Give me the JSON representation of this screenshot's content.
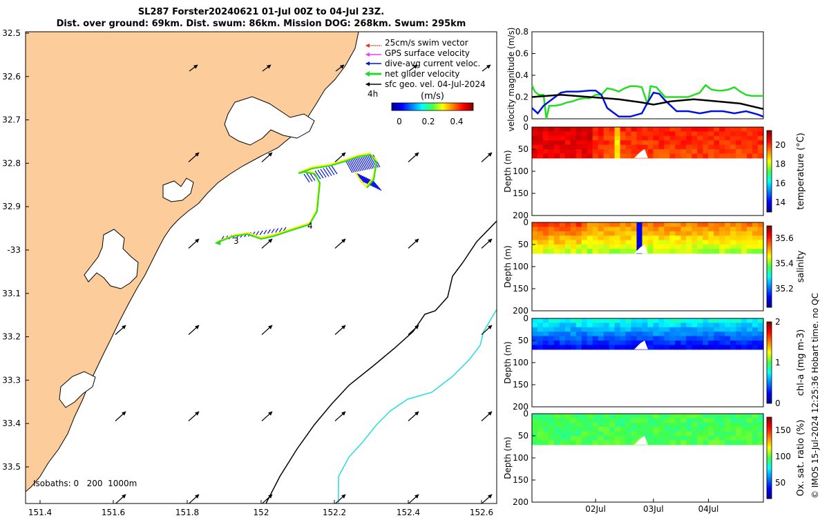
{
  "title": {
    "line1": "SL287 Forster20240621 01-Jul 00Z to 04-Jul 23Z.",
    "line2": "Dist. over ground: 69km. Dist. swum: 86km. Mission DOG: 268km. Swum: 295km"
  },
  "colors": {
    "land": "#fccc9a",
    "swim_vector": "#e8321e",
    "gps_velocity": "#ff33ff",
    "dive_avg": "#0010e0",
    "net_glider": "#22dd22",
    "sfc_geo": "#000000",
    "isobath_200": "#000000",
    "isobath_1000": "#22dddd"
  },
  "map": {
    "lon_ticks": [
      "151.4",
      "151.6",
      "151.8",
      "152",
      "152.2",
      "152.4",
      "152.6"
    ],
    "lat_ticks": [
      "32.5",
      "32.6",
      "32.7",
      "32.8",
      "32.9",
      "-33",
      "33.1",
      "33.2",
      "33.3",
      "33.4",
      "33.5"
    ],
    "legend": [
      {
        "label": "25cm/s swim vector",
        "key": "swim_vector"
      },
      {
        "label": "GPS surface velocity",
        "key": "gps_velocity"
      },
      {
        "label": "dive-avg current veloc.",
        "key": "dive_avg"
      },
      {
        "label": "net glider velocity",
        "key": "net_glider"
      },
      {
        "label": "sfc geo. vel. 04-Jul-2024",
        "key": "sfc_geo"
      }
    ],
    "legend_extra": "4h",
    "colorbar": {
      "label": "(m/s)",
      "ticks": [
        "0",
        "0.2",
        "0.4"
      ]
    },
    "isobath_label": "Isobaths: 0   200  1000m",
    "track_day_labels": [
      "3",
      "4"
    ]
  },
  "chart_data": [
    {
      "type": "line",
      "x_ticks": [
        "02Jul",
        "03Jul",
        "04Jul"
      ],
      "ylabel": "velocity magnitude (m/s)",
      "y_ticks": [
        "0",
        "0.2",
        "0.4",
        "0.6",
        "0.8"
      ],
      "ylim": [
        0,
        0.8
      ],
      "xlim": [
        0,
        4
      ],
      "series": [
        {
          "name": "net glider velocity",
          "color_key": "net_glider",
          "x": [
            0,
            0.05,
            0.12,
            0.2,
            0.25,
            0.3,
            0.4,
            0.5,
            0.6,
            0.7,
            0.8,
            0.9,
            1.0,
            1.1,
            1.2,
            1.3,
            1.4,
            1.5,
            1.6,
            1.7,
            1.8,
            1.9,
            2.0,
            2.05,
            2.15,
            2.3,
            2.5,
            2.7,
            2.9,
            3.0,
            3.1,
            3.2,
            3.3,
            3.4,
            3.5,
            3.6,
            3.7,
            3.8,
            4.0
          ],
          "values": [
            0.31,
            0.25,
            0.22,
            0.22,
            0.0,
            0.12,
            0.12,
            0.13,
            0.15,
            0.16,
            0.18,
            0.19,
            0.19,
            0.22,
            0.22,
            0.28,
            0.27,
            0.25,
            0.28,
            0.3,
            0.3,
            0.29,
            0.13,
            0.3,
            0.29,
            0.2,
            0.2,
            0.2,
            0.24,
            0.31,
            0.27,
            0.26,
            0.26,
            0.27,
            0.29,
            0.25,
            0.22,
            0.21,
            0.21
          ]
        },
        {
          "name": "dive-avg current veloc.",
          "color_key": "dive_avg",
          "x": [
            0,
            0.1,
            0.2,
            0.4,
            0.5,
            0.6,
            0.8,
            1.0,
            1.1,
            1.2,
            1.3,
            1.4,
            1.5,
            1.7,
            1.9,
            2.0,
            2.1,
            2.2,
            2.3,
            2.5,
            2.7,
            2.9,
            3.0,
            3.1,
            3.3,
            3.5,
            3.7,
            3.9,
            4.0
          ],
          "values": [
            0.1,
            0.05,
            0.12,
            0.2,
            0.24,
            0.25,
            0.25,
            0.26,
            0.26,
            0.22,
            0.1,
            0.06,
            0.02,
            0.02,
            0.05,
            0.15,
            0.24,
            0.23,
            0.17,
            0.07,
            0.07,
            0.05,
            0.06,
            0.07,
            0.07,
            0.05,
            0.07,
            0.04,
            0.02
          ]
        },
        {
          "name": "sfc geo. vel.",
          "color_key": "sfc_geo",
          "x": [
            0,
            0.5,
            1.0,
            1.5,
            1.9,
            2.1,
            2.4,
            2.8,
            3.2,
            3.6,
            4.0
          ],
          "values": [
            0.2,
            0.22,
            0.2,
            0.18,
            0.15,
            0.13,
            0.16,
            0.18,
            0.16,
            0.14,
            0.09
          ]
        }
      ]
    },
    {
      "type": "heatmap",
      "ylabel": "Depth (m)",
      "y_ticks": [
        "0",
        "50",
        "100",
        "150",
        "200"
      ],
      "ylim": [
        200,
        0
      ],
      "colorbar_label": "temperature (°C)",
      "colorbar_ticks": [
        "14",
        "16",
        "18",
        "20"
      ],
      "crange": [
        13,
        21.5
      ],
      "max_depth": 70
    },
    {
      "type": "heatmap",
      "ylabel": "Depth (m)",
      "y_ticks": [
        "0",
        "50",
        "100",
        "150",
        "200"
      ],
      "ylim": [
        200,
        0
      ],
      "colorbar_label": "salinity",
      "colorbar_ticks": [
        "35.2",
        "35.4",
        "35.6"
      ],
      "crange": [
        35.05,
        35.7
      ],
      "max_depth": 70
    },
    {
      "type": "heatmap",
      "ylabel": "Depth (m)",
      "y_ticks": [
        "0",
        "50",
        "100",
        "150",
        "200"
      ],
      "ylim": [
        200,
        0
      ],
      "colorbar_label": "chl-a (mg m-3)",
      "colorbar_ticks": [
        "0",
        "1",
        "2"
      ],
      "crange": [
        0,
        2
      ],
      "max_depth": 70
    },
    {
      "type": "heatmap",
      "ylabel": "Depth (m)",
      "y_ticks": [
        "0",
        "50",
        "100",
        "150",
        "200"
      ],
      "ylim": [
        200,
        0
      ],
      "colorbar_label": "Ox. sat. ratio (%)",
      "colorbar_ticks": [
        "50",
        "100",
        "150"
      ],
      "crange": [
        20,
        175
      ],
      "max_depth": 70
    }
  ],
  "footer": "© IMOS 15-Jul-2024 12:25:36 Hobart time. no QC"
}
